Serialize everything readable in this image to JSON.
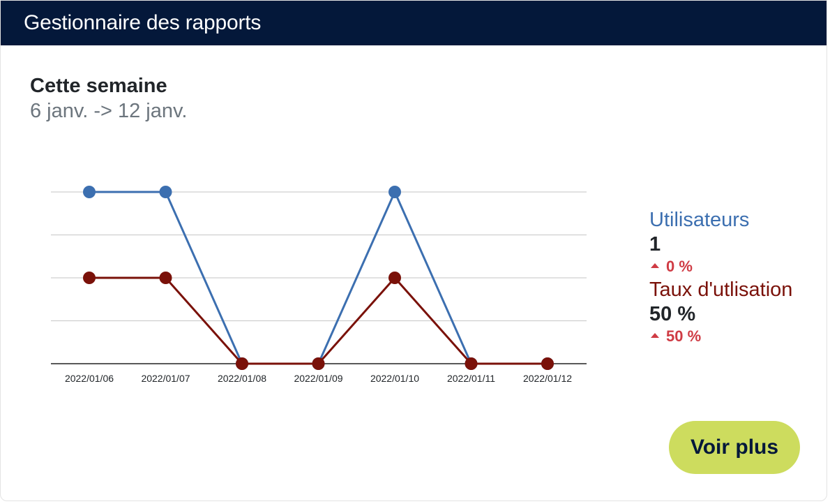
{
  "header": {
    "title": "Gestionnaire des rapports"
  },
  "period": {
    "title": "Cette semaine",
    "range": "6 janv. -> 12 janv."
  },
  "colors": {
    "header_bg": "#04183a",
    "users": "#3c6fb0",
    "usage": "#7a1109",
    "change_positive": "#cf3b44",
    "button_bg": "#cddc5e"
  },
  "chart_data": {
    "type": "line",
    "categories": [
      "2022/01/06",
      "2022/01/07",
      "2022/01/08",
      "2022/01/09",
      "2022/01/10",
      "2022/01/11",
      "2022/01/12"
    ],
    "series": [
      {
        "key": "users",
        "values": [
          1,
          1,
          0,
          0,
          1,
          0,
          0
        ]
      },
      {
        "key": "usage",
        "values": [
          0.5,
          0.5,
          0,
          0,
          0.5,
          0,
          0
        ]
      }
    ],
    "ylim": [
      0,
      1
    ],
    "grid": true,
    "legend": "none"
  },
  "stats": {
    "users": {
      "label": "Utilisateurs",
      "value": "1",
      "change": "0 %"
    },
    "usage": {
      "label": "Taux d'utlisation",
      "value": "50 %",
      "change": "50 %"
    }
  },
  "actions": {
    "more_label": "Voir plus"
  }
}
